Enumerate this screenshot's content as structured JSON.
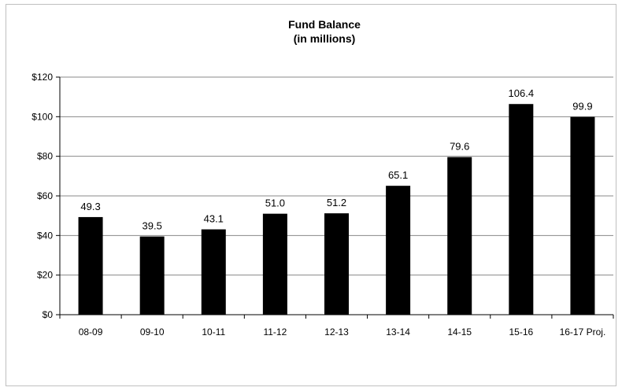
{
  "chart_data": {
    "type": "bar",
    "title": "Fund Balance",
    "subtitle": "(in millions)",
    "xlabel": "",
    "ylabel": "",
    "categories": [
      "08-09",
      "09-10",
      "10-11",
      "11-12",
      "12-13",
      "13-14",
      "14-15",
      "15-16",
      "16-17 Proj."
    ],
    "values": [
      49.3,
      39.5,
      43.1,
      51.0,
      51.2,
      65.1,
      79.6,
      106.4,
      99.9
    ],
    "data_labels": [
      "49.3",
      "39.5",
      "43.1",
      "51.0",
      "51.2",
      "65.1",
      "79.6",
      "106.4",
      "99.9"
    ],
    "ylim": [
      0,
      120
    ],
    "yticks": [
      0,
      20,
      40,
      60,
      80,
      100,
      120
    ],
    "ytick_labels": [
      "$0",
      "$20",
      "$40",
      "$60",
      "$80",
      "$100",
      "$120"
    ],
    "grid": true,
    "legend": "none",
    "colors": {
      "bar": "#000000",
      "grid": "#888888",
      "frame": "#bfbfbf"
    }
  }
}
